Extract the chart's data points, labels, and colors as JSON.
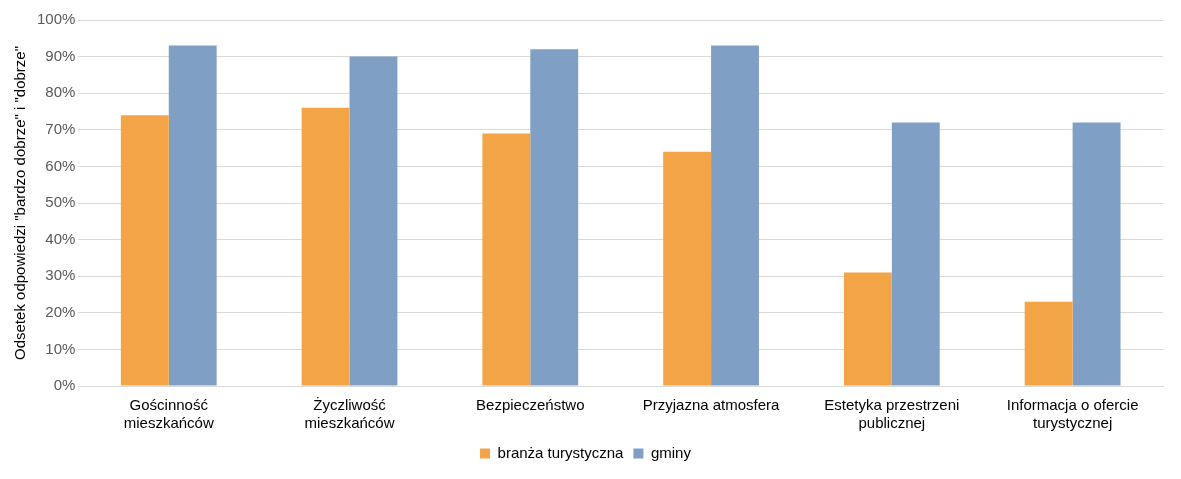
{
  "chart_data": {
    "type": "bar",
    "ylabel": "Odsetek odpowiedzi \"bardzo dobrze\" i \"dobrze\"",
    "categories": [
      "Gościnność mieszkańców",
      "Życzliwość mieszkańców",
      "Bezpieczeństwo",
      "Przyjazna atmosfera",
      "Estetyka przestrzeni publicznej",
      "Informacja o ofercie turystycznej"
    ],
    "series": [
      {
        "name": "branża turystyczna",
        "color": "#f2a446",
        "values": [
          74,
          76,
          69,
          64,
          31,
          23
        ]
      },
      {
        "name": "gminy",
        "color": "#7f9fc4",
        "values": [
          93,
          90,
          92,
          93,
          72,
          72
        ]
      }
    ],
    "ylim": [
      0,
      100
    ],
    "yticks": [
      {
        "value": 0,
        "label": "0%"
      },
      {
        "value": 10,
        "label": "10%"
      },
      {
        "value": 20,
        "label": "20%"
      },
      {
        "value": 30,
        "label": "30%"
      },
      {
        "value": 40,
        "label": "40%"
      },
      {
        "value": 50,
        "label": "50%"
      },
      {
        "value": 60,
        "label": "60%"
      },
      {
        "value": 70,
        "label": "70%"
      },
      {
        "value": 80,
        "label": "80%"
      },
      {
        "value": 90,
        "label": "90%"
      },
      {
        "value": 100,
        "label": "100%"
      }
    ],
    "grid": "y",
    "legend": "bottom"
  }
}
